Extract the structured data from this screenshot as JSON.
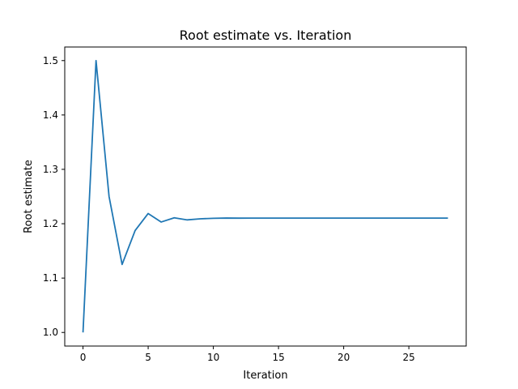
{
  "chart_data": {
    "type": "line",
    "title": "Root estimate vs. Iteration",
    "xlabel": "Iteration",
    "ylabel": "Root estimate",
    "xlim": [
      -1.4,
      29.4
    ],
    "ylim": [
      0.975,
      1.525
    ],
    "xticks": [
      0,
      5,
      10,
      15,
      20,
      25
    ],
    "xtick_labels": [
      "0",
      "5",
      "10",
      "15",
      "20",
      "25"
    ],
    "yticks": [
      1.0,
      1.1,
      1.2,
      1.3,
      1.4,
      1.5
    ],
    "ytick_labels": [
      "1.0",
      "1.1",
      "1.2",
      "1.3",
      "1.4",
      "1.5"
    ],
    "grid": false,
    "series": [
      {
        "color": "#1f77b4",
        "x": [
          0,
          1,
          2,
          3,
          4,
          5,
          6,
          7,
          8,
          9,
          10,
          11,
          12,
          13,
          14,
          15,
          16,
          17,
          18,
          19,
          20,
          21,
          22,
          23,
          24,
          25,
          26,
          27,
          28
        ],
        "y": [
          1.0,
          1.5,
          1.25,
          1.125,
          1.1875,
          1.21875,
          1.203125,
          1.2109375,
          1.20703125,
          1.208984,
          1.209961,
          1.210449,
          1.210205,
          1.210327,
          1.210266,
          1.210297,
          1.210281,
          1.210289,
          1.210285,
          1.210287,
          1.210286,
          1.210286,
          1.210286,
          1.210286,
          1.210286,
          1.210286,
          1.210286,
          1.210286,
          1.210286
        ]
      }
    ]
  }
}
